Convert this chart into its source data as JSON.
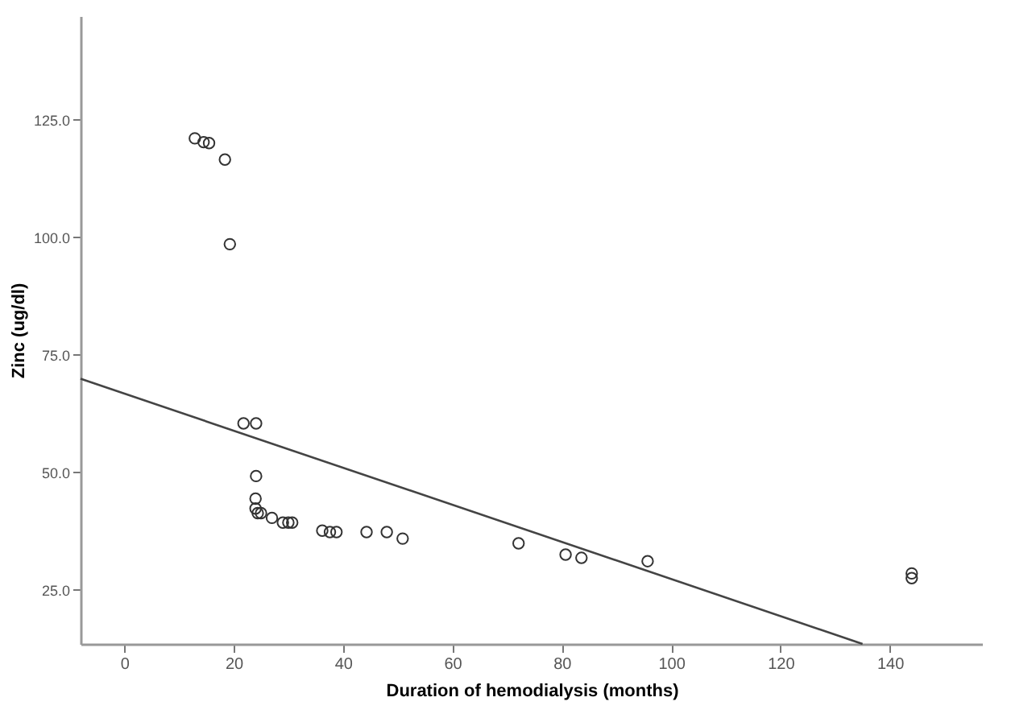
{
  "chart_data": {
    "type": "scatter",
    "xlabel": "Duration of hemodialysis (months)",
    "ylabel": "Zinc (ug/dl)",
    "xlim": [
      -8,
      157
    ],
    "ylim": [
      13.5,
      147
    ],
    "xticks": [
      0,
      20,
      40,
      60,
      80,
      100,
      120,
      140
    ],
    "yticks": [
      {
        "value": 25,
        "label": "25.0"
      },
      {
        "value": 50,
        "label": "50.0"
      },
      {
        "value": 75,
        "label": "75.0"
      },
      {
        "value": 100,
        "label": "100.0"
      },
      {
        "value": 125,
        "label": "125.0"
      }
    ],
    "grid": false,
    "series": [
      {
        "marker": "circle",
        "color": "#333333",
        "x": [
          12.9,
          14.5,
          15.5,
          18.4,
          19.3,
          21.8,
          24.1,
          24.1,
          24,
          24,
          24.4,
          25,
          27,
          29,
          30,
          30.7,
          36.2,
          37.6,
          38.8,
          44.3,
          48,
          50.9,
          72.1,
          80.7,
          83.6,
          95.7,
          144,
          144
        ],
        "values": [
          121,
          120.2,
          120,
          116.5,
          98.5,
          60.4,
          60.4,
          49.2,
          44.4,
          42.3,
          41.3,
          41.3,
          40.3,
          39.3,
          39.3,
          39.3,
          37.6,
          37.3,
          37.3,
          37.3,
          37.3,
          35.9,
          34.9,
          32.5,
          31.8,
          31.1,
          27.5,
          28.5
        ]
      },
      {
        "type": "line",
        "color": "#444444",
        "x": [
          -8,
          135
        ],
        "values": [
          69.9,
          13.5
        ]
      }
    ]
  }
}
